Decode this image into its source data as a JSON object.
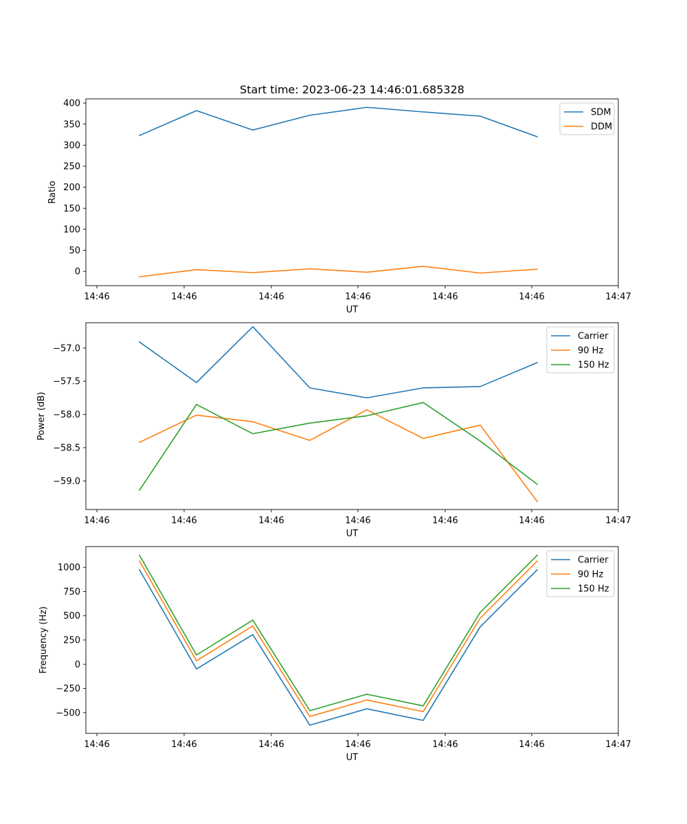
{
  "title": "Start time: 2023-06-23 14:46:01.685328",
  "chart_data": [
    {
      "type": "line",
      "ylabel": "Ratio",
      "xlabel": "UT",
      "xticks": [
        "14:46",
        "14:46",
        "14:46",
        "14:46",
        "14:46",
        "14:46",
        "14:46",
        "14:47"
      ],
      "yticks": [
        0,
        50,
        100,
        150,
        200,
        250,
        300,
        350,
        400
      ],
      "ylim": [
        -34,
        410
      ],
      "legend": "top-right",
      "series": [
        {
          "name": "SDM",
          "color": "#1f77b4",
          "values": [
            323,
            382,
            336,
            371,
            390,
            379,
            369,
            320
          ]
        },
        {
          "name": "DDM",
          "color": "#ff7f0e",
          "values": [
            -13,
            4,
            -3,
            6,
            -2,
            12,
            -4,
            5
          ]
        }
      ]
    },
    {
      "type": "line",
      "ylabel": "Power (dB)",
      "xlabel": "UT",
      "xticks": [
        "14:46",
        "14:46",
        "14:46",
        "14:46",
        "14:46",
        "14:46",
        "14:46",
        "14:47"
      ],
      "yticks": [
        -59.0,
        -58.5,
        -58.0,
        -57.5,
        -57.0
      ],
      "ylim": [
        -59.43,
        -56.62
      ],
      "legend": "top-right",
      "series": [
        {
          "name": "Carrier",
          "color": "#1f77b4",
          "values": [
            -56.91,
            -57.52,
            -56.68,
            -57.6,
            -57.75,
            -57.6,
            -57.58,
            -57.22
          ]
        },
        {
          "name": "90 Hz",
          "color": "#ff7f0e",
          "values": [
            -58.42,
            -58.01,
            -58.11,
            -58.39,
            -57.93,
            -58.36,
            -58.16,
            -59.31
          ]
        },
        {
          "name": "150 Hz",
          "color": "#2ca02c",
          "values": [
            -59.14,
            -57.85,
            -58.29,
            -58.13,
            -58.02,
            -57.82,
            -58.4,
            -59.05
          ]
        }
      ]
    },
    {
      "type": "line",
      "ylabel": "Frequency (Hz)",
      "xlabel": "UT",
      "xticks": [
        "14:46",
        "14:46",
        "14:46",
        "14:46",
        "14:46",
        "14:46",
        "14:46",
        "14:47"
      ],
      "yticks": [
        -500,
        -250,
        0,
        250,
        500,
        750,
        1000
      ],
      "ylim": [
        -714,
        1214
      ],
      "legend": "top-right",
      "series": [
        {
          "name": "Carrier",
          "color": "#1f77b4",
          "values": [
            975,
            -50,
            305,
            -630,
            -460,
            -580,
            385,
            975
          ]
        },
        {
          "name": "90 Hz",
          "color": "#ff7f0e",
          "values": [
            1065,
            35,
            395,
            -540,
            -370,
            -490,
            475,
            1065
          ]
        },
        {
          "name": "150 Hz",
          "color": "#2ca02c",
          "values": [
            1125,
            95,
            455,
            -480,
            -310,
            -430,
            535,
            1125
          ]
        }
      ]
    }
  ]
}
